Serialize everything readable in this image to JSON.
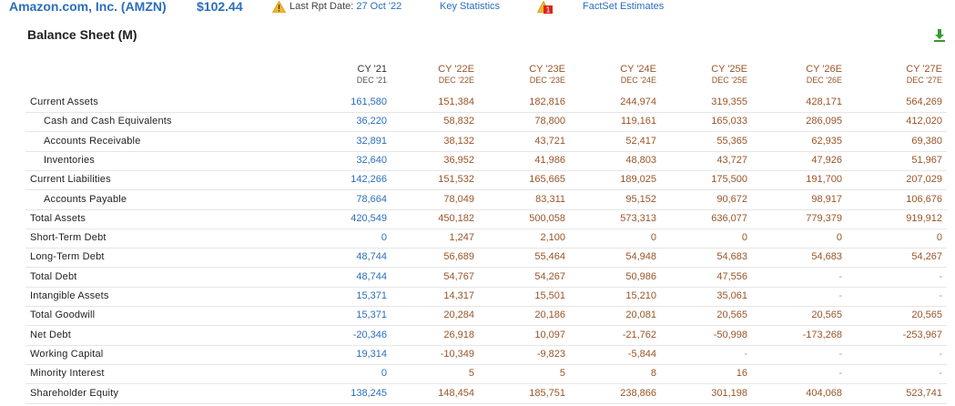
{
  "header": {
    "company": "Amazon.com, Inc. (AMZN)",
    "price": "$102.44",
    "last_rpt_label": "Last Rpt Date:",
    "last_rpt_date": "27 Oct '22",
    "key_statistics": "Key Statistics",
    "alert_count": "1",
    "factset": "FactSet Estimates"
  },
  "title": "Balance Sheet (M)",
  "columns": [
    {
      "year": "CY '21",
      "date": "DEC '21",
      "estimate": false
    },
    {
      "year": "CY '22E",
      "date": "DEC '22E",
      "estimate": true
    },
    {
      "year": "CY '23E",
      "date": "DEC '23E",
      "estimate": true
    },
    {
      "year": "CY '24E",
      "date": "DEC '24E",
      "estimate": true
    },
    {
      "year": "CY '25E",
      "date": "DEC '25E",
      "estimate": true
    },
    {
      "year": "CY '26E",
      "date": "DEC '26E",
      "estimate": true
    },
    {
      "year": "CY '27E",
      "date": "DEC '27E",
      "estimate": true
    }
  ],
  "rows": [
    {
      "label": "Current Assets",
      "indent": false,
      "values": [
        "161,580",
        "151,384",
        "182,816",
        "244,974",
        "319,355",
        "428,171",
        "564,269"
      ]
    },
    {
      "label": "Cash and Cash Equivalents",
      "indent": true,
      "values": [
        "36,220",
        "58,832",
        "78,800",
        "119,161",
        "165,033",
        "286,095",
        "412,020"
      ]
    },
    {
      "label": "Accounts Receivable",
      "indent": true,
      "values": [
        "32,891",
        "38,132",
        "43,721",
        "52,417",
        "55,365",
        "62,935",
        "69,380"
      ]
    },
    {
      "label": "Inventories",
      "indent": true,
      "values": [
        "32,640",
        "36,952",
        "41,986",
        "48,803",
        "43,727",
        "47,926",
        "51,967"
      ]
    },
    {
      "label": "Current Liabilities",
      "indent": false,
      "values": [
        "142,266",
        "151,532",
        "165,665",
        "189,025",
        "175,500",
        "191,700",
        "207,029"
      ]
    },
    {
      "label": "Accounts Payable",
      "indent": true,
      "values": [
        "78,664",
        "78,049",
        "83,311",
        "95,152",
        "90,672",
        "98,917",
        "106,676"
      ]
    },
    {
      "label": "Total Assets",
      "indent": false,
      "values": [
        "420,549",
        "450,182",
        "500,058",
        "573,313",
        "636,077",
        "779,379",
        "919,912"
      ]
    },
    {
      "label": "Short-Term Debt",
      "indent": false,
      "values": [
        "0",
        "1,247",
        "2,100",
        "0",
        "0",
        "0",
        "0"
      ]
    },
    {
      "label": "Long-Term Debt",
      "indent": false,
      "values": [
        "48,744",
        "56,689",
        "55,464",
        "54,948",
        "54,683",
        "54,683",
        "54,267"
      ]
    },
    {
      "label": "Total Debt",
      "indent": false,
      "values": [
        "48,744",
        "54,767",
        "54,267",
        "50,986",
        "47,556",
        "-",
        "-"
      ]
    },
    {
      "label": "Intangible Assets",
      "indent": false,
      "values": [
        "15,371",
        "14,317",
        "15,501",
        "15,210",
        "35,061",
        "-",
        "-"
      ]
    },
    {
      "label": "Total Goodwill",
      "indent": false,
      "values": [
        "15,371",
        "20,284",
        "20,186",
        "20,081",
        "20,565",
        "20,565",
        "20,565"
      ]
    },
    {
      "label": "Net Debt",
      "indent": false,
      "values": [
        "-20,346",
        "26,918",
        "10,097",
        "-21,762",
        "-50,998",
        "-173,268",
        "-253,967"
      ]
    },
    {
      "label": "Working Capital",
      "indent": false,
      "values": [
        "19,314",
        "-10,349",
        "-9,823",
        "-5,844",
        "-",
        "-",
        "-"
      ]
    },
    {
      "label": "Minority Interest",
      "indent": false,
      "values": [
        "0",
        "5",
        "5",
        "8",
        "16",
        "-",
        "-"
      ]
    },
    {
      "label": "Shareholder Equity",
      "indent": false,
      "values": [
        "138,245",
        "148,454",
        "185,751",
        "238,866",
        "301,198",
        "404,068",
        "523,741"
      ]
    }
  ],
  "colors": {
    "link": "#2a6ebb",
    "estimate": "#9a5427",
    "warning": "#f2b632",
    "alert": "#d9261c",
    "download": "#3a9a2e"
  }
}
